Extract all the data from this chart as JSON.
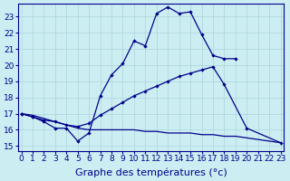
{
  "xlabel": "Graphe des températures (°c)",
  "bg_color": "#cceef2",
  "line_color": "#00008b",
  "grid_color": "#aad4da",
  "ylim": [
    14.7,
    23.8
  ],
  "xlim": [
    -0.3,
    23.3
  ],
  "tick_fontsize": 6.5,
  "xlabel_fontsize": 8,
  "series1_x": [
    0,
    1,
    2,
    3,
    4,
    5,
    6,
    7,
    8,
    9,
    10,
    11,
    12,
    13,
    14,
    15,
    16,
    17,
    18,
    19
  ],
  "series1_y": [
    17.0,
    16.8,
    16.5,
    16.1,
    16.1,
    15.3,
    15.8,
    18.1,
    19.4,
    20.1,
    21.5,
    21.2,
    23.2,
    23.6,
    23.2,
    23.3,
    21.9,
    20.6,
    20.4,
    20.4
  ],
  "series2_x": [
    0,
    1,
    2,
    3,
    4,
    5,
    6,
    7,
    8,
    9,
    10,
    11,
    12,
    13,
    14,
    15,
    16,
    17,
    18,
    20,
    23
  ],
  "series2_y": [
    17.0,
    16.8,
    16.6,
    16.5,
    16.3,
    16.2,
    16.4,
    16.9,
    17.3,
    17.7,
    18.1,
    18.4,
    18.7,
    19.0,
    19.3,
    19.5,
    19.7,
    19.9,
    18.8,
    16.1,
    15.2
  ],
  "series3_x": [
    0,
    1,
    2,
    3,
    4,
    5,
    6,
    7,
    8,
    9,
    10,
    11,
    12,
    13,
    14,
    15,
    16,
    17,
    18,
    19,
    20,
    21,
    22,
    23
  ],
  "series3_y": [
    17.0,
    16.9,
    16.7,
    16.5,
    16.3,
    16.1,
    16.0,
    16.0,
    16.0,
    16.0,
    16.0,
    15.9,
    15.9,
    15.8,
    15.8,
    15.8,
    15.7,
    15.7,
    15.6,
    15.6,
    15.5,
    15.4,
    15.3,
    15.2
  ]
}
